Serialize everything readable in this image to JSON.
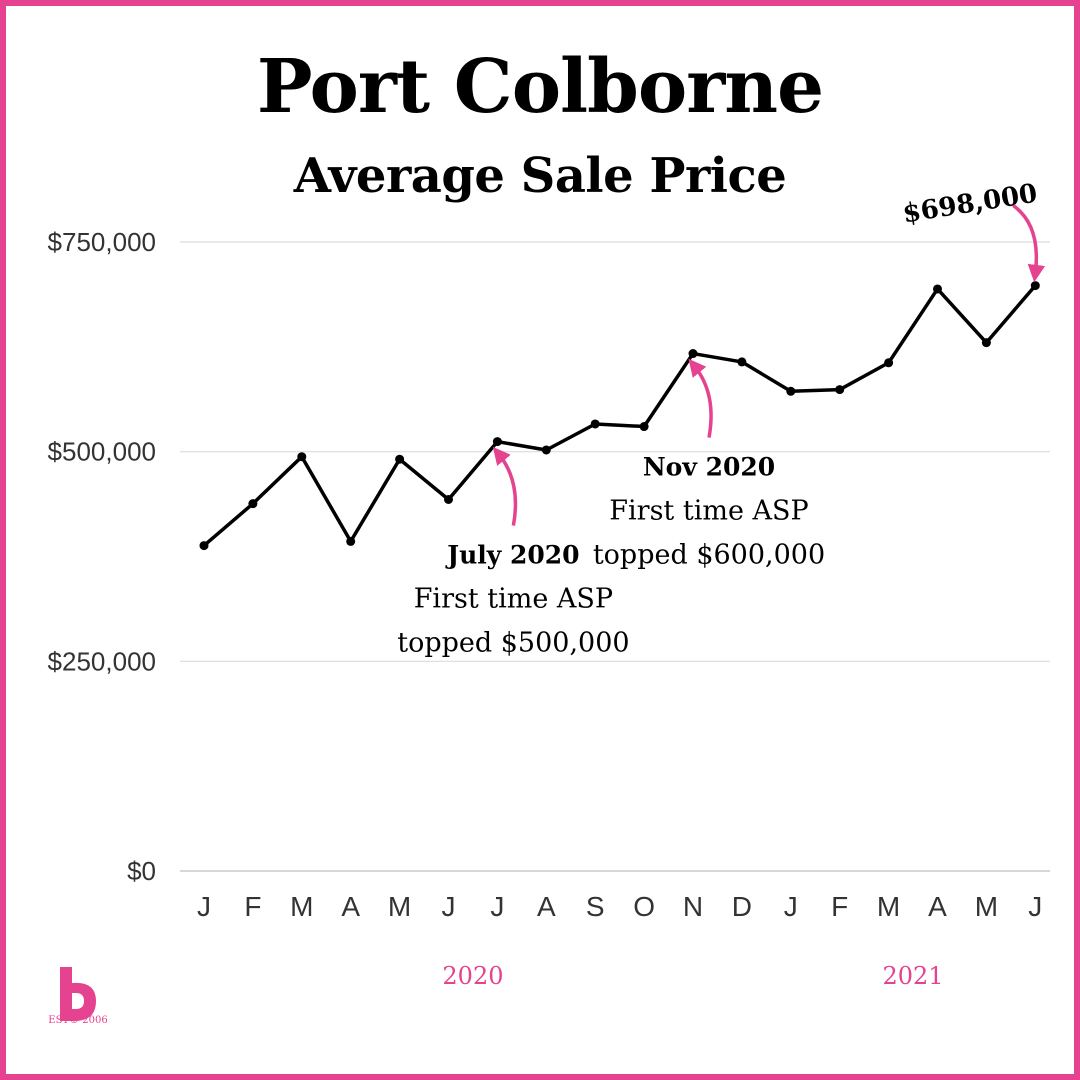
{
  "title": "Port Colborne",
  "subtitle": "Average Sale Price",
  "colors": {
    "accent": "#e5428f",
    "line": "#000000",
    "grid": "#dcdcdc"
  },
  "logo": {
    "icon": "brand-logo-icon",
    "est": "EST© 2006"
  },
  "chart_data": {
    "type": "line",
    "title": "Average Sale Price",
    "xlabel": "",
    "ylabel": "",
    "categories": [
      "J",
      "F",
      "M",
      "A",
      "M",
      "J",
      "J",
      "A",
      "S",
      "O",
      "N",
      "D",
      "J",
      "F",
      "M",
      "A",
      "M",
      "J"
    ],
    "values": [
      388000,
      438000,
      494000,
      393000,
      491000,
      443000,
      512000,
      502000,
      533000,
      530000,
      617000,
      607000,
      572000,
      574000,
      606000,
      694000,
      630000,
      698000
    ],
    "ylim": [
      0,
      750000
    ],
    "yticks": [
      0,
      250000,
      500000,
      750000
    ],
    "ytick_labels": [
      "$0",
      "$250,000",
      "$500,000",
      "$750,000"
    ],
    "grid": true,
    "years": [
      {
        "label": "2020",
        "start_index": 0,
        "end_index": 11
      },
      {
        "label": "2021",
        "start_index": 12,
        "end_index": 17
      }
    ],
    "annotations": [
      {
        "index": 6,
        "heading": "July 2020",
        "lines": [
          "First time ASP",
          "topped $500,000"
        ]
      },
      {
        "index": 10,
        "heading": "Nov 2020",
        "lines": [
          "First time ASP",
          "topped $600,000"
        ]
      },
      {
        "index": 17,
        "heading": "$698,000",
        "lines": []
      }
    ]
  }
}
